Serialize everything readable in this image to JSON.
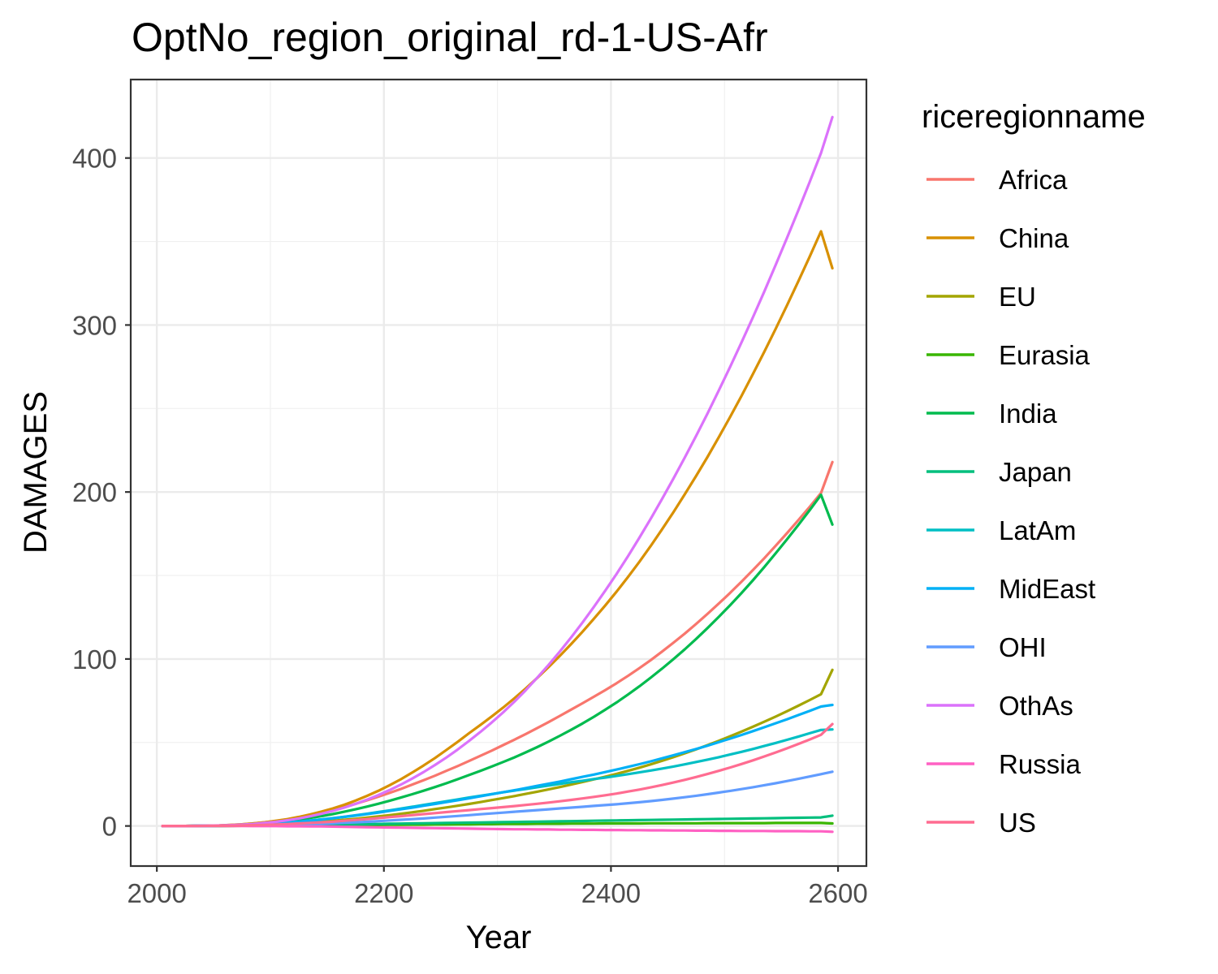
{
  "chart_data": {
    "type": "line",
    "title": "OptNo_region_original_rd-1-US-Afr",
    "xlabel": "Year",
    "ylabel": "DAMAGES",
    "xlim": [
      1977,
      2625
    ],
    "ylim": [
      -24,
      447
    ],
    "x_ticks": [
      "2000",
      "2200",
      "2400",
      "2600"
    ],
    "y_ticks": [
      "0",
      "100",
      "200",
      "300",
      "400"
    ],
    "grid": true,
    "legend_title": "riceregionname",
    "legend_position": "right",
    "x": [
      2005,
      2015,
      2025,
      2035,
      2045,
      2055,
      2065,
      2075,
      2085,
      2095,
      2105,
      2115,
      2125,
      2135,
      2145,
      2155,
      2165,
      2175,
      2185,
      2195,
      2205,
      2215,
      2225,
      2235,
      2245,
      2255,
      2265,
      2275,
      2285,
      2295,
      2305,
      2315,
      2325,
      2335,
      2345,
      2355,
      2365,
      2375,
      2385,
      2395,
      2405,
      2415,
      2425,
      2435,
      2445,
      2455,
      2465,
      2475,
      2485,
      2495,
      2505,
      2515,
      2525,
      2535,
      2545,
      2555,
      2565,
      2575,
      2585,
      2595
    ],
    "series": [
      {
        "name": "Africa",
        "color": "#F8766D",
        "values": [
          0.0,
          0.0,
          0.0,
          0.1,
          0.2,
          0.3,
          0.6,
          1.0,
          1.5,
          2.2,
          3.0,
          4.0,
          5.2,
          6.5,
          8.0,
          9.6,
          11.4,
          13.3,
          15.3,
          17.5,
          19.8,
          22.2,
          24.8,
          27.4,
          30.1,
          33.0,
          35.9,
          38.9,
          42.0,
          45.1,
          48.4,
          51.7,
          55.1,
          58.6,
          62.2,
          65.9,
          69.7,
          73.5,
          77.4,
          81.4,
          85.5,
          89.9,
          94.5,
          99.3,
          104.4,
          109.7,
          115.2,
          121.0,
          127.0,
          133.2,
          139.6,
          146.3,
          153.2,
          160.3,
          167.7,
          175.3,
          183.1,
          191.1,
          199.4,
          217.9
        ]
      },
      {
        "name": "China",
        "color": "#D89000",
        "values": [
          0.0,
          0.0,
          0.0,
          0.1,
          0.2,
          0.3,
          0.6,
          1.0,
          1.5,
          2.2,
          3.1,
          4.1,
          5.4,
          6.9,
          8.6,
          10.5,
          12.7,
          15.2,
          18.0,
          21.0,
          24.4,
          28.0,
          32.0,
          36.2,
          40.7,
          45.5,
          50.4,
          55.5,
          60.5,
          65.6,
          70.9,
          76.5,
          82.4,
          88.6,
          95.1,
          101.9,
          109.0,
          116.4,
          124.1,
          132.1,
          140.4,
          149.1,
          158.2,
          167.7,
          177.6,
          187.9,
          198.6,
          209.6,
          221.0,
          232.8,
          245.0,
          257.6,
          270.6,
          283.9,
          297.6,
          311.7,
          326.1,
          340.9,
          356.1,
          334.0
        ]
      },
      {
        "name": "EU",
        "color": "#A3A500",
        "values": [
          0.0,
          0.0,
          0.0,
          0.0,
          0.1,
          0.1,
          0.2,
          0.3,
          0.5,
          0.7,
          1.0,
          1.3,
          1.7,
          2.1,
          2.6,
          3.1,
          3.7,
          4.3,
          5.0,
          5.7,
          6.5,
          7.3,
          8.2,
          9.1,
          10.1,
          11.1,
          12.1,
          13.2,
          14.3,
          15.5,
          16.7,
          17.9,
          19.2,
          20.5,
          21.9,
          23.3,
          24.8,
          26.3,
          27.9,
          29.5,
          31.2,
          33.0,
          34.9,
          36.9,
          39.0,
          41.2,
          43.5,
          45.9,
          48.4,
          51.0,
          53.7,
          56.5,
          59.4,
          62.4,
          65.5,
          68.7,
          72.0,
          75.4,
          78.9,
          93.5
        ]
      },
      {
        "name": "Eurasia",
        "color": "#39B600",
        "values": [
          0.0,
          0.0,
          0.0,
          0.0,
          0.0,
          0.0,
          0.0,
          0.1,
          0.1,
          0.1,
          0.2,
          0.2,
          0.3,
          0.3,
          0.4,
          0.4,
          0.5,
          0.5,
          0.6,
          0.6,
          0.7,
          0.7,
          0.8,
          0.8,
          0.9,
          0.9,
          1.0,
          1.0,
          1.1,
          1.1,
          1.2,
          1.2,
          1.2,
          1.3,
          1.3,
          1.3,
          1.4,
          1.4,
          1.4,
          1.5,
          1.5,
          1.5,
          1.5,
          1.6,
          1.6,
          1.6,
          1.6,
          1.6,
          1.7,
          1.7,
          1.7,
          1.7,
          1.7,
          1.7,
          1.8,
          1.8,
          1.8,
          1.8,
          1.8,
          1.5
        ]
      },
      {
        "name": "India",
        "color": "#00BB4E",
        "values": [
          0.0,
          0.0,
          0.0,
          0.1,
          0.1,
          0.2,
          0.4,
          0.7,
          1.1,
          1.6,
          2.2,
          2.9,
          3.8,
          4.8,
          5.9,
          7.1,
          8.5,
          10.0,
          11.6,
          13.3,
          15.1,
          17.0,
          19.0,
          21.1,
          23.3,
          25.6,
          28.0,
          30.5,
          33.0,
          35.6,
          38.3,
          41.1,
          44.1,
          47.2,
          50.5,
          54.0,
          57.6,
          61.4,
          65.4,
          69.6,
          74.0,
          78.7,
          83.6,
          88.8,
          94.2,
          99.9,
          105.8,
          112.0,
          118.5,
          125.2,
          132.2,
          139.5,
          147.1,
          155.0,
          163.2,
          171.6,
          180.2,
          189.1,
          198.3,
          180.5
        ]
      },
      {
        "name": "Japan",
        "color": "#00BF7D",
        "values": [
          0.0,
          0.0,
          0.0,
          0.0,
          0.0,
          0.0,
          0.1,
          0.1,
          0.2,
          0.2,
          0.3,
          0.4,
          0.5,
          0.6,
          0.7,
          0.8,
          0.9,
          1.0,
          1.1,
          1.2,
          1.3,
          1.4,
          1.5,
          1.6,
          1.7,
          1.8,
          1.9,
          2.0,
          2.1,
          2.2,
          2.3,
          2.4,
          2.5,
          2.6,
          2.7,
          2.8,
          2.9,
          3.0,
          3.1,
          3.2,
          3.3,
          3.4,
          3.5,
          3.6,
          3.7,
          3.8,
          3.9,
          4.0,
          4.1,
          4.2,
          4.3,
          4.4,
          4.5,
          4.6,
          4.7,
          4.8,
          4.9,
          5.0,
          5.1,
          6.2
        ]
      },
      {
        "name": "LatAm",
        "color": "#00BFC4",
        "values": [
          0.0,
          0.0,
          0.0,
          0.0,
          0.1,
          0.2,
          0.3,
          0.5,
          0.8,
          1.1,
          1.5,
          2.0,
          2.6,
          3.2,
          3.9,
          4.7,
          5.5,
          6.4,
          7.3,
          8.3,
          9.3,
          10.4,
          11.5,
          12.6,
          13.7,
          14.8,
          15.9,
          17.0,
          18.1,
          19.1,
          20.2,
          21.2,
          22.2,
          23.2,
          24.2,
          25.2,
          26.2,
          27.1,
          28.1,
          29.0,
          30.0,
          31.0,
          32.1,
          33.2,
          34.4,
          35.6,
          36.9,
          38.3,
          39.7,
          41.2,
          42.8,
          44.4,
          46.1,
          47.9,
          49.7,
          51.6,
          53.5,
          55.5,
          57.5,
          57.8
        ]
      },
      {
        "name": "MidEast",
        "color": "#00B0F6",
        "values": [
          0.0,
          0.0,
          0.0,
          0.1,
          0.1,
          0.2,
          0.3,
          0.5,
          0.8,
          1.1,
          1.5,
          2.0,
          2.6,
          3.2,
          3.9,
          4.6,
          5.4,
          6.2,
          7.1,
          8.0,
          9.0,
          10.0,
          11.0,
          12.1,
          13.2,
          14.3,
          15.4,
          16.6,
          17.8,
          19.0,
          20.2,
          21.4,
          22.7,
          24.0,
          25.3,
          26.6,
          28.0,
          29.4,
          30.8,
          32.3,
          33.8,
          35.4,
          37.0,
          38.7,
          40.5,
          42.3,
          44.2,
          46.1,
          48.1,
          50.2,
          52.3,
          54.5,
          56.8,
          59.1,
          61.5,
          63.9,
          66.4,
          68.9,
          71.5,
          72.5
        ]
      },
      {
        "name": "OHI",
        "color": "#619CFF",
        "values": [
          0.0,
          0.0,
          0.0,
          0.0,
          0.0,
          0.1,
          0.1,
          0.2,
          0.3,
          0.4,
          0.5,
          0.7,
          0.9,
          1.1,
          1.3,
          1.6,
          1.9,
          2.2,
          2.5,
          2.9,
          3.3,
          3.7,
          4.1,
          4.5,
          5.0,
          5.5,
          6.0,
          6.5,
          7.0,
          7.5,
          8.0,
          8.5,
          9.0,
          9.5,
          10.0,
          10.5,
          11.0,
          11.5,
          12.0,
          12.5,
          13.0,
          13.6,
          14.2,
          14.9,
          15.6,
          16.4,
          17.2,
          18.1,
          19.0,
          20.0,
          21.0,
          22.1,
          23.2,
          24.4,
          25.6,
          26.9,
          28.2,
          29.6,
          31.0,
          32.5
        ]
      },
      {
        "name": "OthAs",
        "color": "#DB72FB",
        "values": [
          0.0,
          0.0,
          0.0,
          0.1,
          0.2,
          0.3,
          0.5,
          0.8,
          1.2,
          1.8,
          2.5,
          3.4,
          4.5,
          5.8,
          7.3,
          9.0,
          11.0,
          13.2,
          15.7,
          18.5,
          21.5,
          24.8,
          28.4,
          32.3,
          36.5,
          41.0,
          45.8,
          50.9,
          56.3,
          62.0,
          68.0,
          74.5,
          81.4,
          88.7,
          96.4,
          104.5,
          113.0,
          121.9,
          131.2,
          140.9,
          151.0,
          161.6,
          172.6,
          184.0,
          195.8,
          208.0,
          220.6,
          233.6,
          247.0,
          260.8,
          275.0,
          289.6,
          304.6,
          320.0,
          335.8,
          352.0,
          368.6,
          385.6,
          403.0,
          424.5
        ]
      },
      {
        "name": "Russia",
        "color": "#FF61C3",
        "values": [
          0.0,
          0.0,
          0.0,
          0.0,
          0.0,
          0.0,
          0.0,
          0.0,
          -0.1,
          -0.1,
          -0.1,
          -0.2,
          -0.2,
          -0.3,
          -0.3,
          -0.4,
          -0.5,
          -0.6,
          -0.7,
          -0.8,
          -0.9,
          -1.0,
          -1.1,
          -1.2,
          -1.3,
          -1.4,
          -1.5,
          -1.6,
          -1.7,
          -1.8,
          -1.9,
          -2.0,
          -2.0,
          -2.1,
          -2.1,
          -2.2,
          -2.2,
          -2.3,
          -2.3,
          -2.4,
          -2.4,
          -2.5,
          -2.5,
          -2.6,
          -2.6,
          -2.7,
          -2.7,
          -2.8,
          -2.8,
          -2.9,
          -2.9,
          -3.0,
          -3.0,
          -3.0,
          -3.1,
          -3.1,
          -3.1,
          -3.2,
          -3.2,
          -3.5
        ]
      },
      {
        "name": "US",
        "color": "#FF6C91",
        "values": [
          0.0,
          0.0,
          0.0,
          0.0,
          0.1,
          0.1,
          0.2,
          0.3,
          0.5,
          0.7,
          0.9,
          1.2,
          1.5,
          1.8,
          2.2,
          2.6,
          3.1,
          3.6,
          4.1,
          4.7,
          5.3,
          5.9,
          6.5,
          7.1,
          7.7,
          8.3,
          8.9,
          9.5,
          10.1,
          10.7,
          11.3,
          11.9,
          12.6,
          13.3,
          14.0,
          14.8,
          15.6,
          16.5,
          17.4,
          18.4,
          19.4,
          20.6,
          21.8,
          23.1,
          24.5,
          26.0,
          27.6,
          29.3,
          31.1,
          33.0,
          35.0,
          37.1,
          39.3,
          41.6,
          44.0,
          46.5,
          49.1,
          51.8,
          54.6,
          61.0
        ]
      }
    ]
  }
}
